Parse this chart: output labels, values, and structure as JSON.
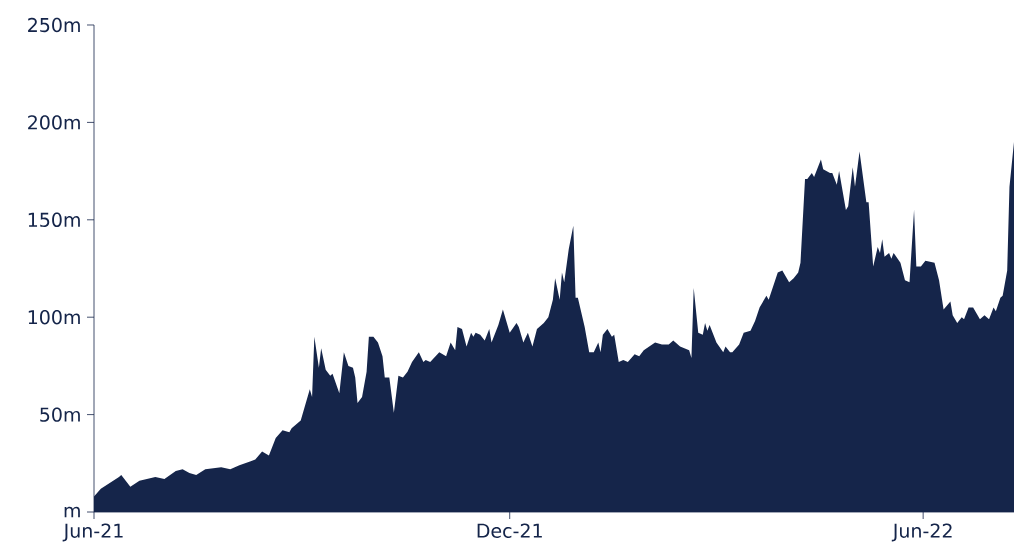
{
  "chart_data": {
    "type": "area",
    "color": "#15254a",
    "x": [
      "2021-06-01",
      "2021-06-04",
      "2021-06-08",
      "2021-06-12",
      "2021-06-13",
      "2021-06-17",
      "2021-06-21",
      "2021-06-28",
      "2021-07-02",
      "2021-07-07",
      "2021-07-10",
      "2021-07-13",
      "2021-07-16",
      "2021-07-20",
      "2021-07-27",
      "2021-07-31",
      "2021-08-04",
      "2021-08-09",
      "2021-08-11",
      "2021-08-14",
      "2021-08-17",
      "2021-08-20",
      "2021-08-23",
      "2021-08-26",
      "2021-08-27",
      "2021-08-31",
      "2021-09-02",
      "2021-09-04",
      "2021-09-05",
      "2021-09-06",
      "2021-09-08",
      "2021-09-09",
      "2021-09-11",
      "2021-09-13",
      "2021-09-14",
      "2021-09-17",
      "2021-09-19",
      "2021-09-21",
      "2021-09-23",
      "2021-09-24",
      "2021-09-25",
      "2021-09-27",
      "2021-09-29",
      "2021-09-30",
      "2021-10-02",
      "2021-10-04",
      "2021-10-06",
      "2021-10-07",
      "2021-10-09",
      "2021-10-11",
      "2021-10-13",
      "2021-10-15",
      "2021-10-17",
      "2021-10-19",
      "2021-10-22",
      "2021-10-24",
      "2021-10-25",
      "2021-10-27",
      "2021-10-31",
      "2021-11-03",
      "2021-11-05",
      "2021-11-07",
      "2021-11-08",
      "2021-11-10",
      "2021-11-12",
      "2021-11-14",
      "2021-11-15",
      "2021-11-16",
      "2021-11-18",
      "2021-11-20",
      "2021-11-22",
      "2021-11-23",
      "2021-11-26",
      "2021-11-28",
      "2021-12-01",
      "2021-12-04",
      "2021-12-05",
      "2021-12-07",
      "2021-12-09",
      "2021-12-11",
      "2021-12-13",
      "2021-12-16",
      "2021-12-18",
      "2021-12-20",
      "2021-12-21",
      "2021-12-23",
      "2021-12-24",
      "2021-12-25",
      "2021-12-27",
      "2021-12-29",
      "2021-12-30",
      "2021-12-31",
      "2022-01-03",
      "2022-01-05",
      "2022-01-07",
      "2022-01-09",
      "2022-01-10",
      "2022-01-11",
      "2022-01-13",
      "2022-01-15",
      "2022-01-16",
      "2022-01-18",
      "2022-01-20",
      "2022-01-22",
      "2022-01-25",
      "2022-01-27",
      "2022-01-29",
      "2022-02-03",
      "2022-02-06",
      "2022-02-09",
      "2022-02-11",
      "2022-02-14",
      "2022-02-18",
      "2022-02-19",
      "2022-02-20",
      "2022-02-22",
      "2022-02-24",
      "2022-02-25",
      "2022-02-26",
      "2022-02-27",
      "2022-03-02",
      "2022-03-05",
      "2022-03-06",
      "2022-03-08",
      "2022-03-09",
      "2022-03-12",
      "2022-03-14",
      "2022-03-17",
      "2022-03-19",
      "2022-03-21",
      "2022-03-24",
      "2022-03-25",
      "2022-03-29",
      "2022-03-31",
      "2022-04-03",
      "2022-04-05",
      "2022-04-07",
      "2022-04-08",
      "2022-04-10",
      "2022-04-11",
      "2022-04-13",
      "2022-04-14",
      "2022-04-17",
      "2022-04-18",
      "2022-04-21",
      "2022-04-22",
      "2022-04-24",
      "2022-04-25",
      "2022-04-28",
      "2022-04-29",
      "2022-05-01",
      "2022-05-02",
      "2022-05-04",
      "2022-05-07",
      "2022-05-08",
      "2022-05-10",
      "2022-05-12",
      "2022-05-13",
      "2022-05-14",
      "2022-05-15",
      "2022-05-17",
      "2022-05-18",
      "2022-05-19",
      "2022-05-22",
      "2022-05-24",
      "2022-05-26",
      "2022-05-28",
      "2022-05-29",
      "2022-05-31",
      "2022-06-02",
      "2022-06-06",
      "2022-06-08",
      "2022-06-10",
      "2022-06-13",
      "2022-06-14",
      "2022-06-16",
      "2022-06-18",
      "2022-06-19",
      "2022-06-21",
      "2022-06-23",
      "2022-06-26",
      "2022-06-28",
      "2022-06-30",
      "2022-07-02",
      "2022-07-03",
      "2022-07-05",
      "2022-07-06",
      "2022-07-08",
      "2022-07-09",
      "2022-07-11"
    ],
    "values": [
      8,
      12,
      15,
      18,
      19,
      13,
      16,
      18,
      17,
      21,
      22,
      20,
      19,
      22,
      23,
      22,
      24,
      26,
      27,
      31,
      29,
      38,
      42,
      41,
      43,
      47,
      55,
      63,
      59,
      90,
      74,
      84,
      73,
      70,
      71,
      61,
      82,
      75,
      74,
      69,
      56,
      59,
      72,
      90,
      90,
      87,
      80,
      69,
      69,
      51,
      70,
      69,
      72,
      77,
      82,
      77,
      78,
      77,
      82,
      80,
      87,
      83,
      95,
      94,
      85,
      92,
      90,
      92,
      91,
      88,
      94,
      87,
      96,
      104,
      92,
      97,
      95,
      87,
      92,
      85,
      94,
      97,
      100,
      109,
      120,
      109,
      123,
      118,
      135,
      147,
      110,
      110,
      95,
      82,
      82,
      87,
      82,
      91,
      94,
      90,
      91,
      77,
      78,
      77,
      81,
      80,
      83,
      87,
      86,
      86,
      88,
      85,
      83,
      79,
      115,
      92,
      91,
      97,
      93,
      96,
      87,
      82,
      85,
      82,
      82,
      86,
      92,
      93,
      98,
      105,
      111,
      109,
      123,
      124,
      118,
      120,
      123,
      128,
      171,
      171,
      174,
      172,
      181,
      176,
      174,
      174,
      168,
      175,
      155,
      157,
      177,
      167,
      185,
      159,
      159,
      126,
      136,
      133,
      140,
      131,
      133,
      130,
      133,
      128,
      119,
      118,
      155,
      126,
      126,
      129,
      128,
      119,
      104,
      108,
      101,
      97,
      100,
      99,
      105,
      105,
      99,
      101,
      99,
      105,
      103,
      110,
      111,
      124,
      167,
      190
    ],
    "xlim": [
      "2021-06-01",
      "2022-07-11"
    ],
    "xticks": [
      {
        "value": "2021-06-01",
        "label": "Jun-21"
      },
      {
        "value": "2021-12-01",
        "label": "Dec-21"
      },
      {
        "value": "2022-06-01",
        "label": "Jun-22"
      }
    ],
    "ylim": [
      0,
      250
    ],
    "yticks": [
      {
        "value": 0,
        "label": "m"
      },
      {
        "value": 50,
        "label": "50m"
      },
      {
        "value": 100,
        "label": "100m"
      },
      {
        "value": 150,
        "label": "150m"
      },
      {
        "value": 200,
        "label": "200m"
      },
      {
        "value": 250,
        "label": "250m"
      }
    ],
    "relative": false
  }
}
